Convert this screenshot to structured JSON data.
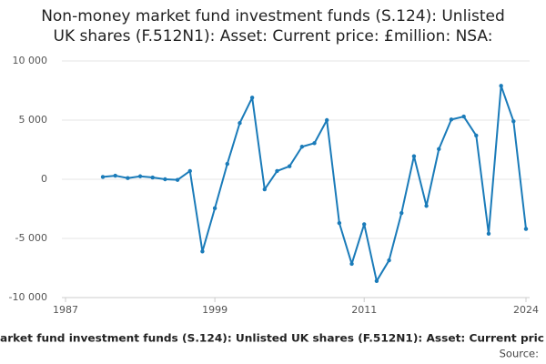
{
  "chart_data": {
    "type": "line",
    "title": [
      "Non-money market fund investment funds (S.124): Unlisted",
      "UK shares (F.512N1): Asset: Current price: £million: NSA:"
    ],
    "x_label": "arket fund investment funds (S.124): Unlisted UK shares (F.512N1): Asset: Current pric",
    "source": "Source:",
    "x": [
      1990,
      1991,
      1992,
      1993,
      1994,
      1995,
      1996,
      1997,
      1998,
      1999,
      2000,
      2001,
      2002,
      2003,
      2004,
      2005,
      2006,
      2007,
      2008,
      2009,
      2010,
      2011,
      2012,
      2013,
      2014,
      2015,
      2016,
      2017,
      2018,
      2019,
      2020,
      2021,
      2022,
      2023,
      2024
    ],
    "values": [
      200,
      300,
      100,
      250,
      150,
      0,
      -50,
      700,
      -6100,
      -2450,
      1300,
      4750,
      6900,
      -850,
      700,
      1100,
      2750,
      3050,
      5000,
      -3700,
      -7150,
      -3800,
      -8600,
      -6850,
      -2850,
      1950,
      -2250,
      2550,
      5050,
      5300,
      3700,
      -4600,
      7900,
      4900,
      -4200
    ],
    "color": "#1a7bb9",
    "xlim": [
      1987,
      2024
    ],
    "xticks": [
      1987,
      1999,
      2011,
      2024
    ],
    "ylim": [
      -10000,
      10000
    ],
    "yticks": [
      {
        "value": -10000,
        "label": "-10 000"
      },
      {
        "value": -5000,
        "label": "-5 000"
      },
      0,
      {
        "value": 5000,
        "label": "5 000"
      },
      {
        "value": 10000,
        "label": "10 000"
      }
    ],
    "grid": true
  }
}
